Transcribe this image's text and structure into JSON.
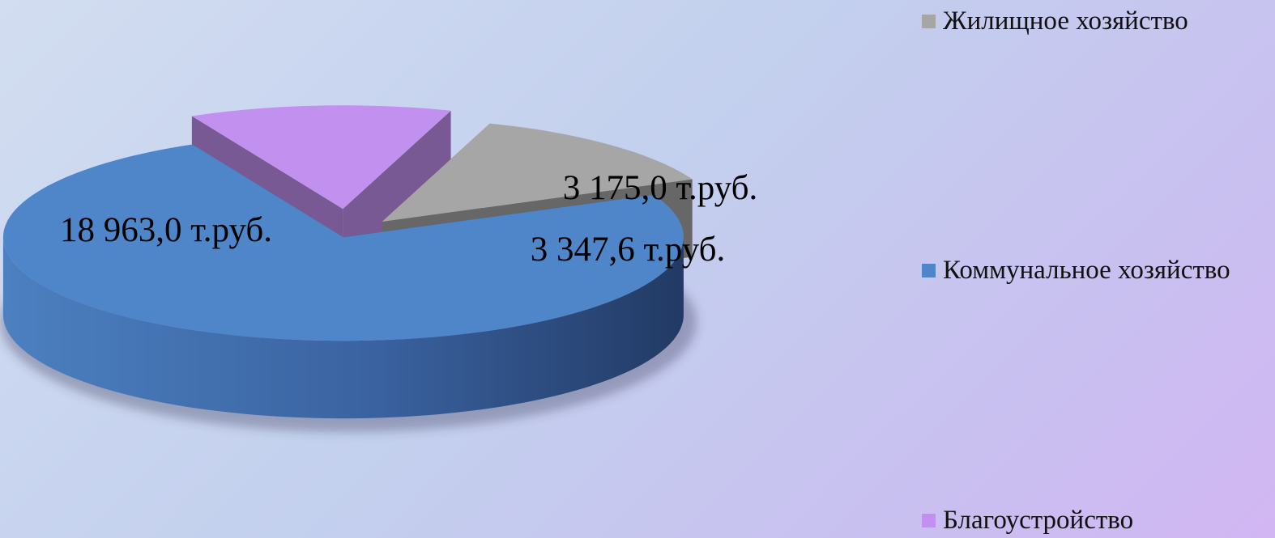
{
  "chart_data": {
    "type": "pie",
    "style": "3d-exploded",
    "categories": [
      "Жилищное хозяйство",
      "Коммунальное хозяйство",
      "Благоустройство"
    ],
    "values": [
      3347.6,
      18963.0,
      3175.0
    ],
    "data_labels": [
      "3 347,6 т.руб.",
      "18 963,0 т.руб.",
      "3 175,0 т.руб."
    ],
    "colors": [
      "#a6a6a6",
      "#4f86c9",
      "#c290ef"
    ],
    "legend_position": "right"
  }
}
